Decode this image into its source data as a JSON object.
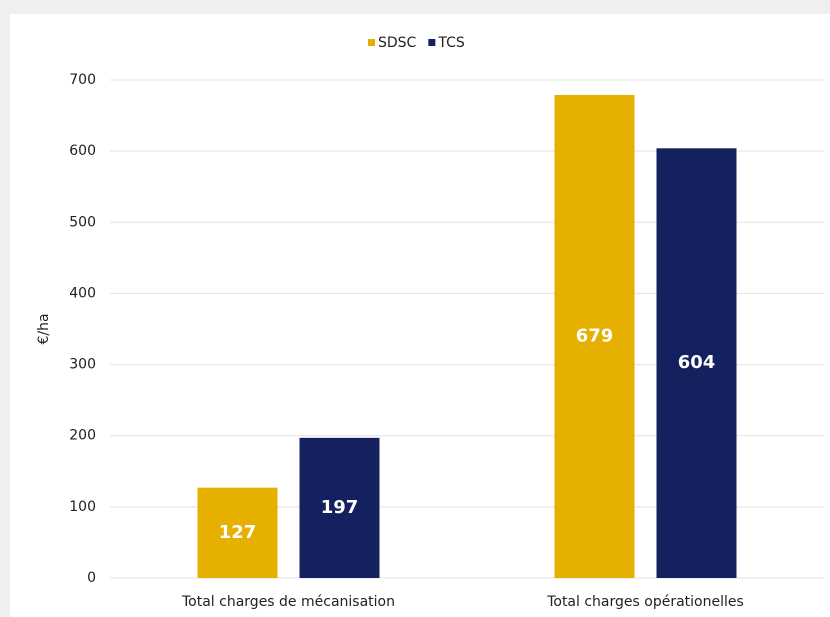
{
  "chart_data": {
    "type": "bar",
    "y_label": "€/ha",
    "categories": [
      "Total charges de mécanisation",
      "Total charges opérationelles"
    ],
    "series": [
      {
        "name": "SDSC",
        "color": "#e6b000",
        "values": [
          127,
          679
        ]
      },
      {
        "name": "TCS",
        "color": "#15215e",
        "values": [
          197,
          604
        ]
      }
    ],
    "ylim": [
      0,
      700
    ],
    "yticks": [
      0,
      100,
      200,
      300,
      400,
      500,
      600,
      700
    ],
    "grid": true,
    "legend": "top"
  }
}
